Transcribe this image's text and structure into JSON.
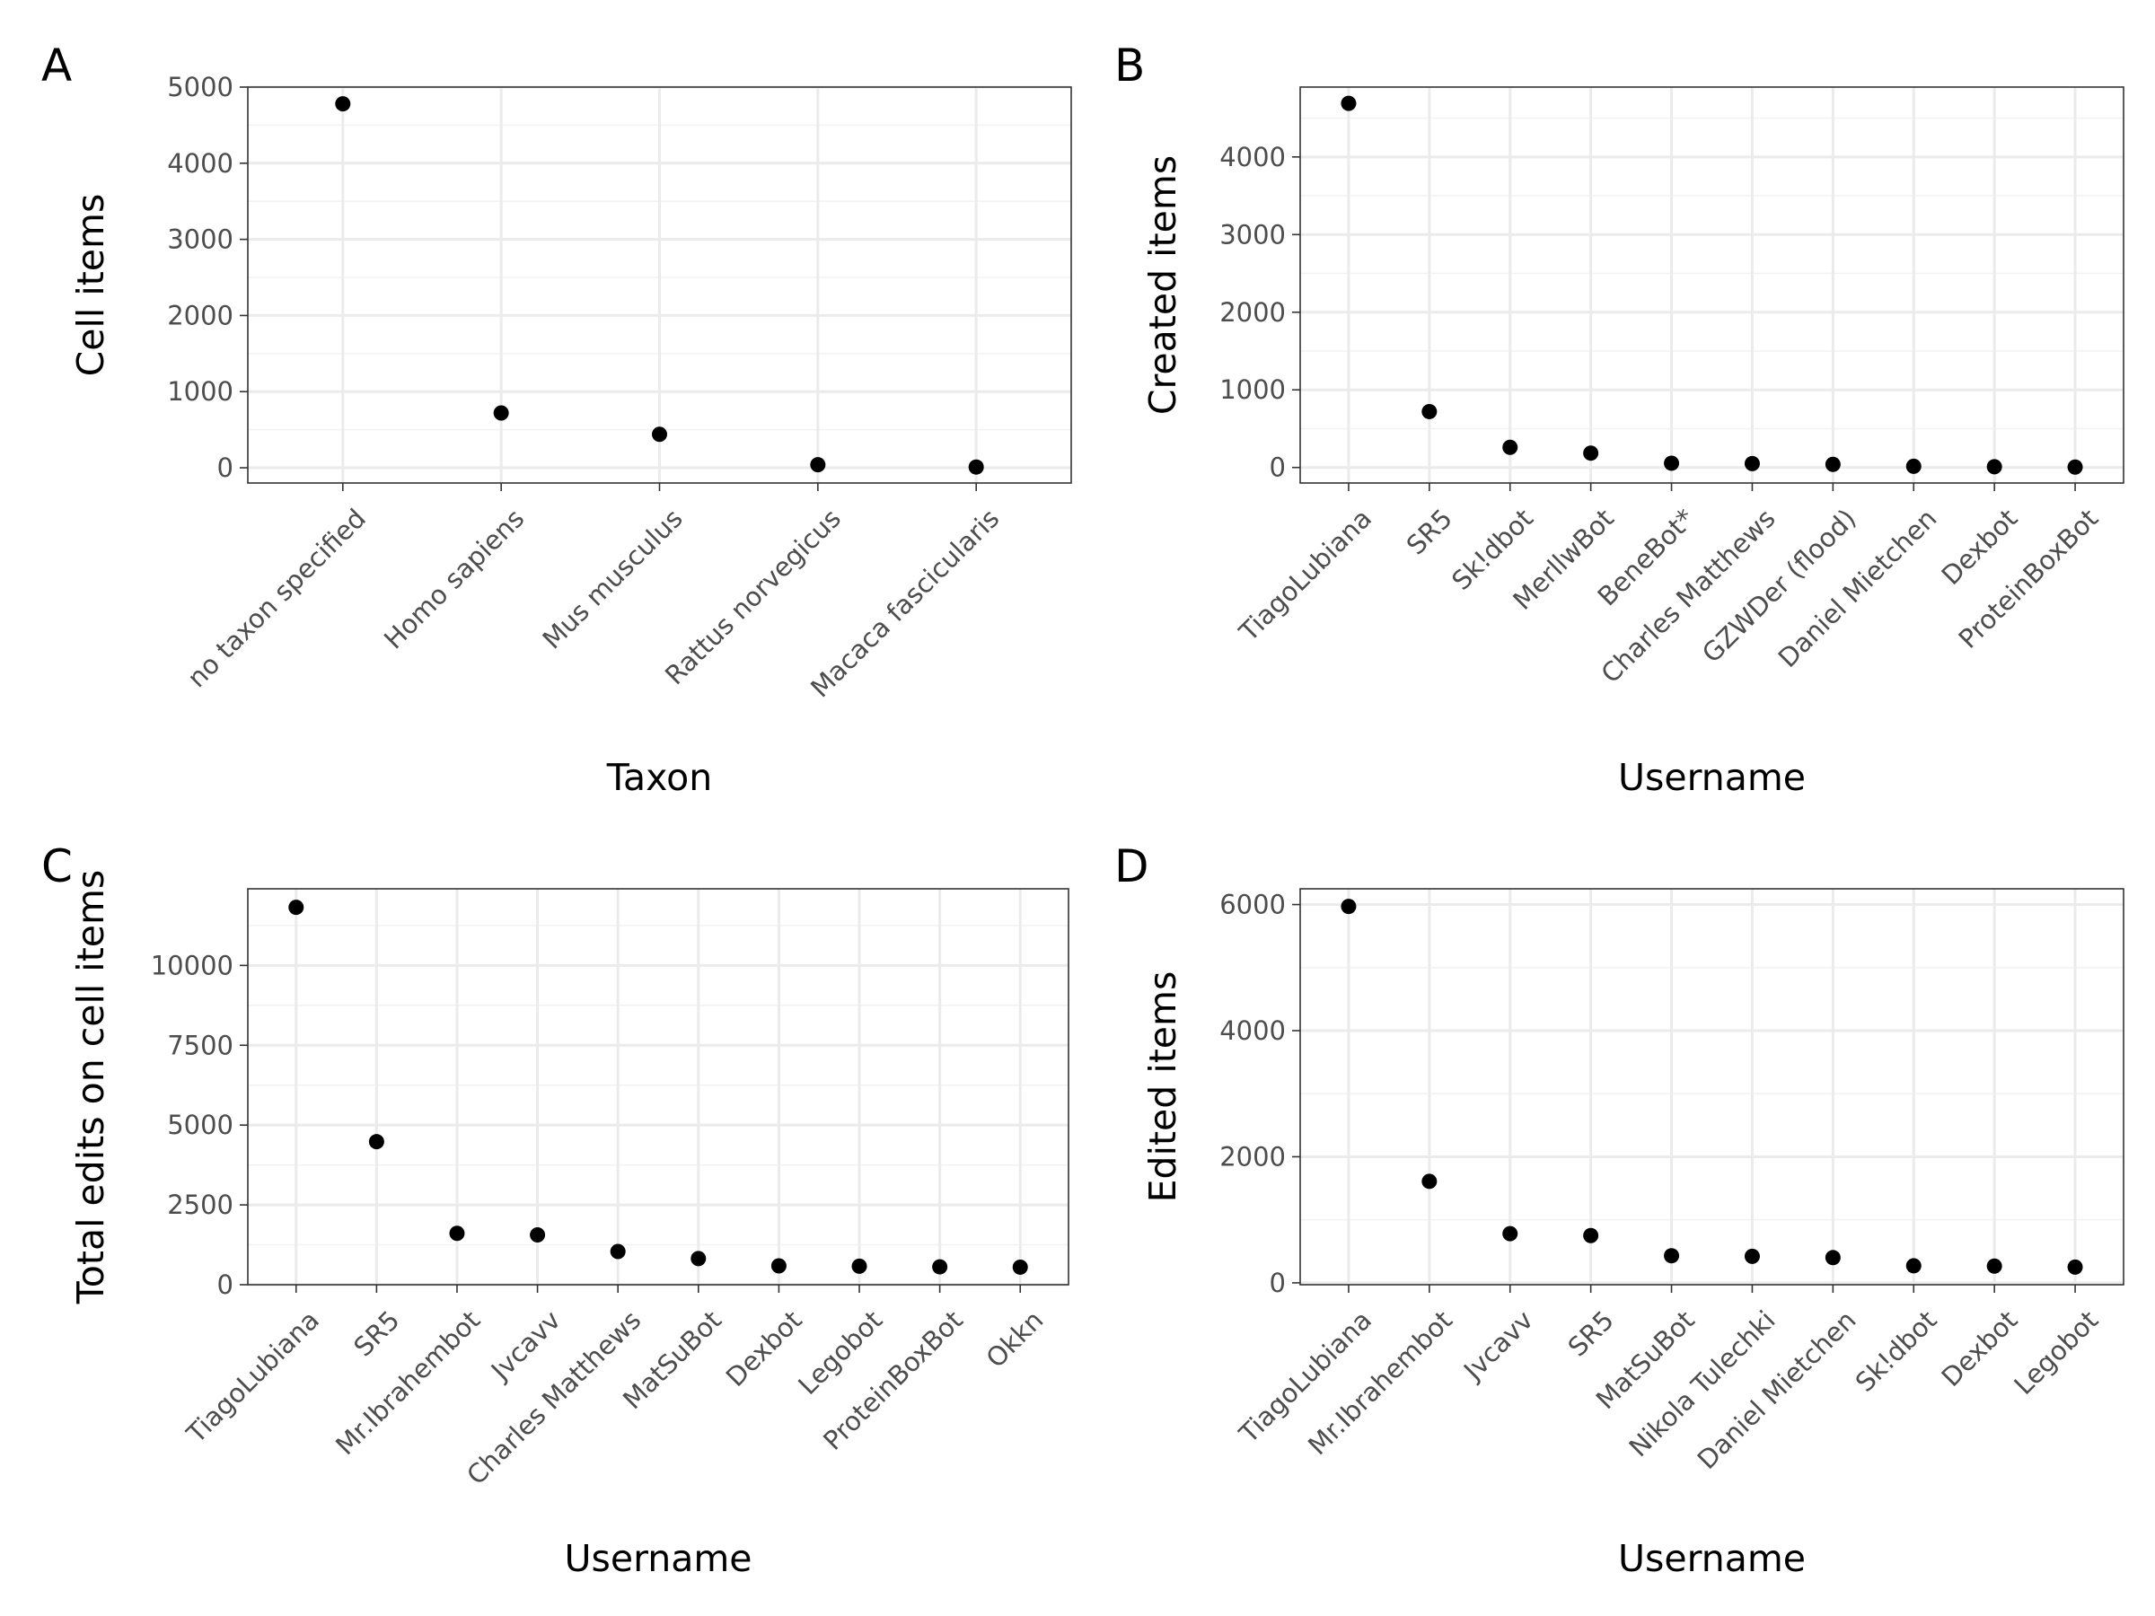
{
  "chart_data": [
    {
      "type": "scatter",
      "tag": "A",
      "xlabel": "Taxon",
      "ylabel": "Cell items",
      "categories": [
        "no taxon specified",
        "Homo sapiens",
        "Mus musculus",
        "Rattus norvegicus",
        "Macaca fascicularis"
      ],
      "values": [
        4780,
        720,
        440,
        40,
        10
      ],
      "ylim": [
        -200,
        5000
      ],
      "yticks": [
        0,
        1000,
        2000,
        3000,
        4000,
        5000
      ],
      "grid": true,
      "color": "#000000"
    },
    {
      "type": "scatter",
      "tag": "B",
      "xlabel": "Username",
      "ylabel": "Created items",
      "categories": [
        "TiagoLubiana",
        "SR5",
        "Sk!dbot",
        "MerllwBot",
        "BeneBot*",
        "Charles Matthews",
        "GZWDer (flood)",
        "Daniel Mietchen",
        "Dexbot",
        "ProteinBoxBot"
      ],
      "values": [
        4690,
        720,
        260,
        185,
        55,
        50,
        40,
        15,
        10,
        5
      ],
      "ylim": [
        -200,
        4900
      ],
      "yticks": [
        0,
        1000,
        2000,
        3000,
        4000
      ],
      "grid": true,
      "color": "#000000"
    },
    {
      "type": "scatter",
      "tag": "C",
      "xlabel": "Username",
      "ylabel": "Total edits on cell items",
      "categories": [
        "TiagoLubiana",
        "SR5",
        "Mr.Ibrahembot",
        "Jvcavv",
        "Charles Matthews",
        "MatSuBot",
        "Dexbot",
        "Legobot",
        "ProteinBoxBot",
        "Okkn"
      ],
      "values": [
        11820,
        4480,
        1610,
        1560,
        1040,
        820,
        590,
        580,
        560,
        550
      ],
      "ylim": [
        0,
        12400
      ],
      "yticks": [
        0,
        2500,
        5000,
        7500,
        10000
      ],
      "grid": true,
      "color": "#000000"
    },
    {
      "type": "scatter",
      "tag": "D",
      "xlabel": "Username",
      "ylabel": "Edited items",
      "categories": [
        "TiagoLubiana",
        "Mr.Ibrahembot",
        "Jvcavv",
        "SR5",
        "MatSuBot",
        "Nikola Tulechki",
        "Daniel Mietchen",
        "Sk!dbot",
        "Dexbot",
        "Legobot"
      ],
      "values": [
        5970,
        1610,
        780,
        750,
        430,
        420,
        400,
        270,
        265,
        250
      ],
      "ylim": [
        -30,
        6250
      ],
      "yticks": [
        0,
        2000,
        4000,
        6000
      ],
      "grid": true,
      "color": "#000000"
    }
  ]
}
